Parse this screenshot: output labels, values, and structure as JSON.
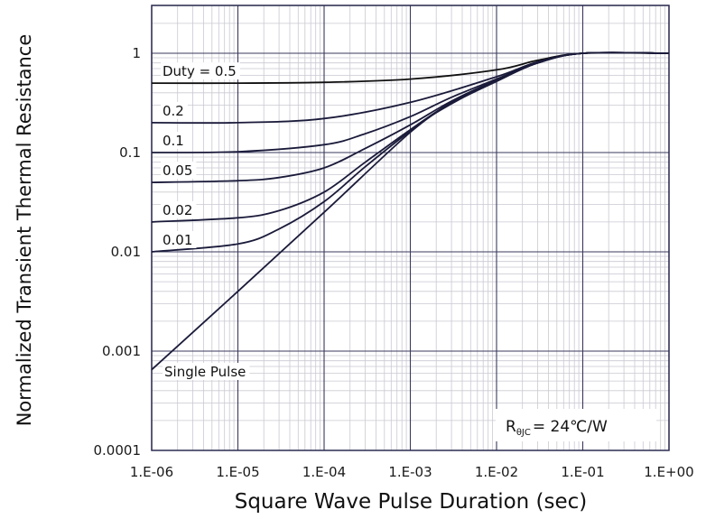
{
  "chart_data": {
    "type": "line",
    "xscale": "log",
    "yscale": "log",
    "xlim": [
      1e-06,
      1
    ],
    "ylim": [
      0.0001,
      1
    ],
    "xlabel": "Square Wave Pulse Duration (sec)",
    "ylabel": "Normalized Transient Thermal Resistance",
    "xticks": [
      "1.E-06",
      "1.E-05",
      "1.E-04",
      "1.E-03",
      "1.E-02",
      "1.E-01",
      "1.E+00"
    ],
    "yticks": [
      "1",
      "0.1",
      "0.01",
      "0.001",
      "0.0001"
    ],
    "grid": true,
    "annotation": {
      "prefix": "R",
      "subscript": "θJC",
      "suffix": "= 24℃/W"
    },
    "series": [
      {
        "name": "Duty = 0.5",
        "x": [
          1e-06,
          1e-05,
          0.0001,
          0.001,
          0.01,
          0.03,
          0.1,
          1
        ],
        "y": [
          0.5,
          0.5,
          0.51,
          0.55,
          0.68,
          0.85,
          1,
          1
        ]
      },
      {
        "name": "0.2",
        "x": [
          1e-06,
          1e-05,
          0.0001,
          0.001,
          0.01,
          0.03,
          0.1,
          1
        ],
        "y": [
          0.2,
          0.2,
          0.22,
          0.32,
          0.58,
          0.82,
          1,
          1
        ]
      },
      {
        "name": "0.1",
        "x": [
          1e-06,
          1e-05,
          0.0001,
          0.0003,
          0.001,
          0.003,
          0.01,
          0.03,
          0.1,
          1
        ],
        "y": [
          0.1,
          0.102,
          0.12,
          0.155,
          0.23,
          0.36,
          0.55,
          0.8,
          1,
          1
        ]
      },
      {
        "name": "0.05",
        "x": [
          1e-06,
          1e-05,
          3e-05,
          0.0001,
          0.0003,
          0.001,
          0.003,
          0.01,
          0.03,
          0.1,
          1
        ],
        "y": [
          0.05,
          0.052,
          0.056,
          0.07,
          0.11,
          0.19,
          0.33,
          0.54,
          0.8,
          1,
          1
        ]
      },
      {
        "name": "0.02",
        "x": [
          1e-06,
          1e-05,
          3e-05,
          0.0001,
          0.0003,
          0.001,
          0.003,
          0.01,
          0.03,
          0.1,
          1
        ],
        "y": [
          0.02,
          0.022,
          0.026,
          0.04,
          0.08,
          0.17,
          0.32,
          0.53,
          0.8,
          1,
          1
        ]
      },
      {
        "name": "0.01",
        "x": [
          1e-06,
          1e-05,
          3e-05,
          0.0001,
          0.0003,
          0.001,
          0.003,
          0.01,
          0.03,
          0.1,
          1
        ],
        "y": [
          0.01,
          0.012,
          0.017,
          0.032,
          0.072,
          0.165,
          0.32,
          0.53,
          0.8,
          1,
          1
        ]
      },
      {
        "name": "Single Pulse",
        "x": [
          1e-06,
          1e-05,
          0.0001,
          0.001,
          0.003,
          0.01,
          0.03,
          0.1,
          1
        ],
        "y": [
          0.00065,
          0.004,
          0.025,
          0.16,
          0.31,
          0.52,
          0.8,
          1,
          1
        ]
      }
    ]
  }
}
